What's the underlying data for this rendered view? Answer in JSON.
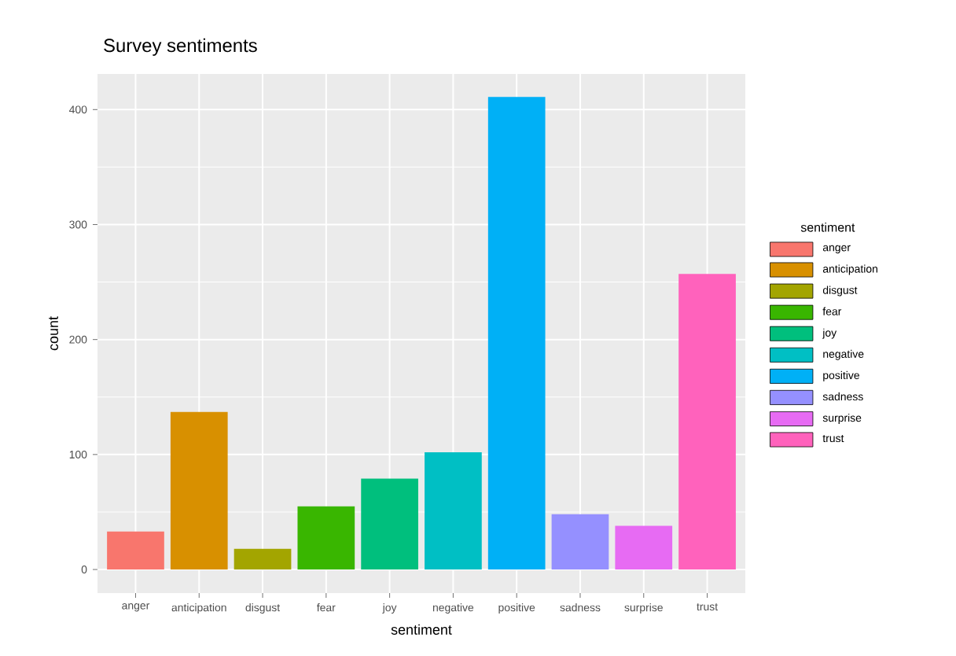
{
  "chart_data": {
    "type": "bar",
    "title": "Survey sentiments",
    "xlabel": "sentiment",
    "ylabel": "count",
    "legend_title": "sentiment",
    "categories": [
      "anger",
      "anticipation",
      "disgust",
      "fear",
      "joy",
      "negative",
      "positive",
      "sadness",
      "surprise",
      "trust"
    ],
    "series": [
      {
        "name": "anger",
        "color": "#f8766d",
        "values": [
          33,
          null,
          null,
          null,
          null,
          null,
          null,
          null,
          null,
          null
        ]
      },
      {
        "name": "anticipation",
        "color": "#d89000",
        "values": [
          null,
          137,
          null,
          null,
          null,
          null,
          null,
          null,
          null,
          null
        ]
      },
      {
        "name": "disgust",
        "color": "#a3a500",
        "values": [
          null,
          null,
          18,
          null,
          null,
          null,
          null,
          null,
          null,
          null
        ]
      },
      {
        "name": "fear",
        "color": "#39b600",
        "values": [
          null,
          null,
          null,
          55,
          null,
          null,
          null,
          null,
          null,
          null
        ]
      },
      {
        "name": "joy",
        "color": "#00bf7d",
        "values": [
          null,
          null,
          null,
          null,
          79,
          null,
          null,
          null,
          null,
          null
        ]
      },
      {
        "name": "negative",
        "color": "#00bfc4",
        "values": [
          null,
          null,
          null,
          null,
          null,
          102,
          null,
          null,
          null,
          null
        ]
      },
      {
        "name": "positive",
        "color": "#00b0f6",
        "values": [
          null,
          null,
          null,
          null,
          null,
          null,
          411,
          null,
          null,
          null
        ]
      },
      {
        "name": "sadness",
        "color": "#9590ff",
        "values": [
          null,
          null,
          null,
          null,
          null,
          null,
          null,
          48,
          null,
          null
        ]
      },
      {
        "name": "surprise",
        "color": "#e76bf3",
        "values": [
          null,
          null,
          null,
          null,
          null,
          null,
          null,
          null,
          38,
          null
        ]
      },
      {
        "name": "trust",
        "color": "#ff62bc",
        "values": [
          null,
          null,
          null,
          null,
          null,
          null,
          null,
          null,
          null,
          257
        ]
      }
    ],
    "ylim": [
      -20.5,
      431
    ],
    "yticks": [
      0,
      100,
      200,
      300,
      400
    ],
    "grid": true,
    "legend": "right"
  }
}
